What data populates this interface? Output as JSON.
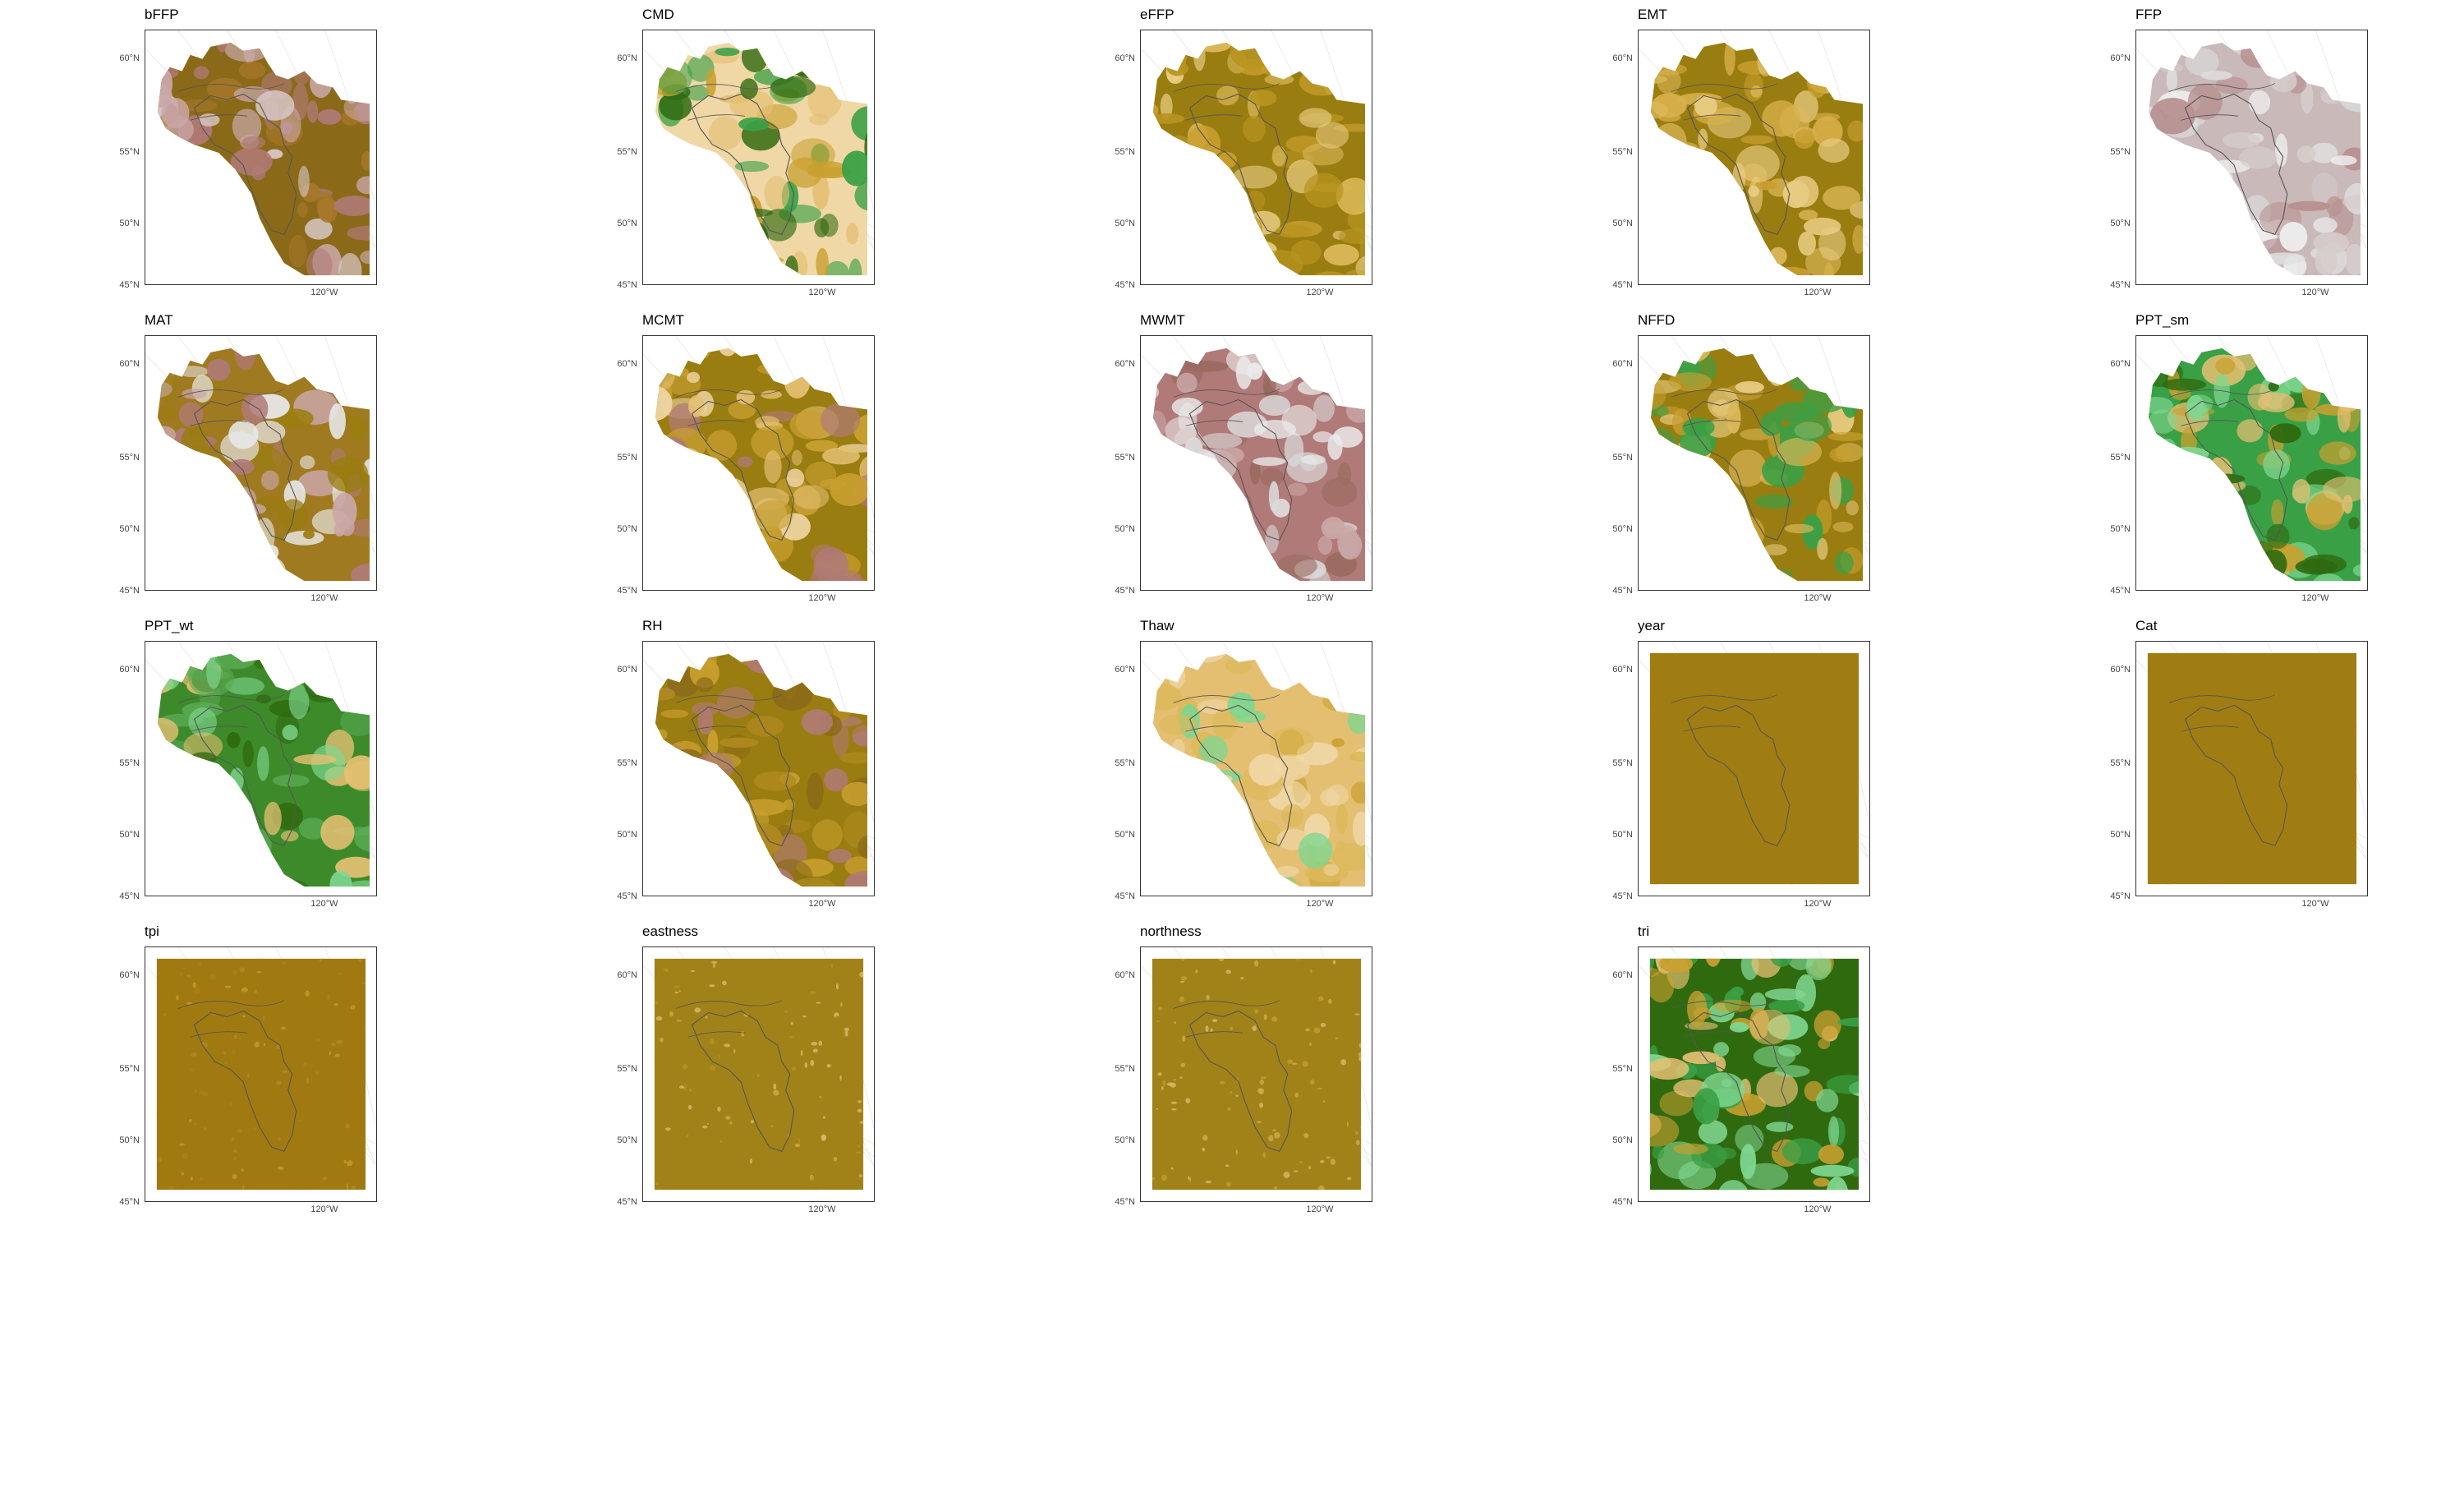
{
  "axes": {
    "lat_labels": [
      "60°N",
      "55°N",
      "50°N",
      "45°N"
    ],
    "lon_labels": [
      "120°W"
    ]
  },
  "colors": {
    "olive": "#9a7d10",
    "gold": "#c9a030",
    "tan": "#e4bf72",
    "pink": "#b07a78",
    "brown": "#8a6a18",
    "green_dark": "#2f6a0f",
    "green_mid": "#3aa046",
    "green_light": "#7fd690",
    "grey_light": "#dadada",
    "grey_mid": "#bfb3b3",
    "outline": "#555555"
  },
  "panels": [
    {
      "title": "bFFP",
      "scheme": [
        "#8a6a18",
        "#a8782a",
        "#b07a78",
        "#c9a7a7",
        "#d8c8c8"
      ],
      "full": false
    },
    {
      "title": "CMD",
      "scheme": [
        "#f0d7a6",
        "#e4bf72",
        "#c9a030",
        "#3aa046",
        "#2f6a0f"
      ],
      "full": false
    },
    {
      "title": "eFFP",
      "scheme": [
        "#9a7d10",
        "#b89420",
        "#c9a030",
        "#dcb95a",
        "#e8cc82"
      ],
      "full": false
    },
    {
      "title": "EMT",
      "scheme": [
        "#9a7d10",
        "#c9a030",
        "#dcb95a",
        "#e8cc82",
        "#d8b04a"
      ],
      "full": false
    },
    {
      "title": "FFP",
      "scheme": [
        "#c9b9b9",
        "#d6cccc",
        "#e0e0e0",
        "#eeeeee",
        "#b89090"
      ],
      "full": false
    },
    {
      "title": "MAT",
      "scheme": [
        "#a07a20",
        "#9a7d10",
        "#b07a78",
        "#c9a7a7",
        "#e8e8e8"
      ],
      "full": false
    },
    {
      "title": "MCMT",
      "scheme": [
        "#9a7d10",
        "#c9a030",
        "#e4bf72",
        "#f0d7a6",
        "#b07a78"
      ],
      "full": false
    },
    {
      "title": "MWMT",
      "scheme": [
        "#b07a78",
        "#c9a7a7",
        "#dadada",
        "#ebebeb",
        "#9a6a60"
      ],
      "full": false
    },
    {
      "title": "NFFD",
      "scheme": [
        "#9a7d10",
        "#c9a030",
        "#dcb95a",
        "#e8cc82",
        "#3aa046"
      ],
      "full": false
    },
    {
      "title": "PPT_sm",
      "scheme": [
        "#3aa046",
        "#7fd690",
        "#2f6a0f",
        "#e4bf72",
        "#c9a030"
      ],
      "full": false
    },
    {
      "title": "PPT_wt",
      "scheme": [
        "#3d8a2a",
        "#2f6a0f",
        "#5aab55",
        "#7fd690",
        "#e4bf72"
      ],
      "full": false
    },
    {
      "title": "RH",
      "scheme": [
        "#9a7d10",
        "#b08a20",
        "#b07a78",
        "#c9a030",
        "#8a6a18"
      ],
      "full": false
    },
    {
      "title": "Thaw",
      "scheme": [
        "#e4bf72",
        "#f0d7a6",
        "#7fd690",
        "#c9a030",
        "#dcb95a"
      ],
      "full": false
    },
    {
      "title": "year",
      "scheme": [
        "#a07d12",
        "#a07d12",
        "#a07d12",
        "#a07d12",
        "#a07d12"
      ],
      "full": true
    },
    {
      "title": "Cat",
      "scheme": [
        "#a07d12",
        "#a07d12",
        "#a07d12",
        "#a07d12",
        "#a07d12"
      ],
      "full": true
    },
    {
      "title": "tpi",
      "scheme": [
        "#a07a10",
        "#a88420",
        "#b08a30",
        "#a07a10",
        "#c9a030"
      ],
      "full": true
    },
    {
      "title": "eastness",
      "scheme": [
        "#a08218",
        "#b89420",
        "#e4bf72",
        "#a08218",
        "#d6b050"
      ],
      "full": true
    },
    {
      "title": "northness",
      "scheme": [
        "#a08218",
        "#c9a030",
        "#e4bf72",
        "#a08218",
        "#d6b050"
      ],
      "full": true
    },
    {
      "title": "tri",
      "scheme": [
        "#2f6a0f",
        "#3aa046",
        "#7fd690",
        "#e4bf72",
        "#c9a030"
      ],
      "full": true
    }
  ]
}
